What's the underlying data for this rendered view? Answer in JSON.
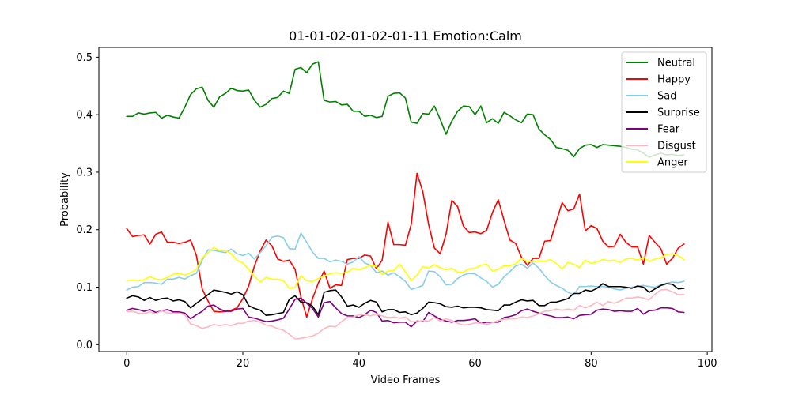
{
  "chart_data": {
    "type": "line",
    "title": "01-01-02-01-02-01-11 Emotion:Calm",
    "xlabel": "Video Frames",
    "ylabel": "Probability",
    "xlim": [
      -4.8,
      100.8
    ],
    "ylim": [
      -0.012,
      0.517
    ],
    "xticks": [
      0,
      20,
      40,
      60,
      80,
      100
    ],
    "yticks": [
      0.0,
      0.1,
      0.2,
      0.3,
      0.4,
      0.5
    ],
    "ytick_labels": [
      "0.0",
      "0.1",
      "0.2",
      "0.3",
      "0.4",
      "0.5"
    ],
    "grid": false,
    "legend_position": "top-right",
    "series": [
      {
        "name": "Neutral",
        "color": "#008000",
        "values": [
          0.397,
          0.397,
          0.403,
          0.401,
          0.403,
          0.404,
          0.394,
          0.399,
          0.396,
          0.394,
          0.413,
          0.435,
          0.445,
          0.448,
          0.425,
          0.413,
          0.431,
          0.437,
          0.446,
          0.442,
          0.441,
          0.443,
          0.425,
          0.413,
          0.418,
          0.428,
          0.43,
          0.441,
          0.437,
          0.479,
          0.482,
          0.473,
          0.488,
          0.492,
          0.425,
          0.422,
          0.423,
          0.417,
          0.418,
          0.406,
          0.406,
          0.397,
          0.399,
          0.395,
          0.397,
          0.432,
          0.437,
          0.438,
          0.429,
          0.387,
          0.385,
          0.402,
          0.401,
          0.415,
          0.392,
          0.366,
          0.389,
          0.406,
          0.415,
          0.414,
          0.4,
          0.415,
          0.386,
          0.393,
          0.385,
          0.404,
          0.398,
          0.391,
          0.386,
          0.401,
          0.4,
          0.375,
          0.365,
          0.357,
          0.343,
          0.341,
          0.338,
          0.327,
          0.341,
          0.347,
          0.348,
          0.343,
          0.348,
          0.347,
          0.346,
          0.345,
          0.343,
          0.34,
          0.339,
          0.333,
          0.326,
          0.33,
          0.333,
          0.33,
          0.331,
          0.329,
          0.33
        ]
      },
      {
        "name": "Happy",
        "color": "#ff0000",
        "values": [
          0.202,
          0.188,
          0.19,
          0.191,
          0.175,
          0.192,
          0.196,
          0.178,
          0.178,
          0.176,
          0.178,
          0.182,
          0.155,
          0.097,
          0.076,
          0.058,
          0.057,
          0.058,
          0.06,
          0.064,
          0.08,
          0.102,
          0.137,
          0.163,
          0.182,
          0.172,
          0.149,
          0.145,
          0.147,
          0.131,
          0.083,
          0.048,
          0.08,
          0.107,
          0.128,
          0.098,
          0.104,
          0.103,
          0.148,
          0.15,
          0.15,
          0.156,
          0.154,
          0.132,
          0.147,
          0.213,
          0.174,
          0.174,
          0.173,
          0.209,
          0.298,
          0.266,
          0.209,
          0.168,
          0.158,
          0.192,
          0.251,
          0.24,
          0.206,
          0.195,
          0.196,
          0.193,
          0.199,
          0.23,
          0.252,
          0.216,
          0.182,
          0.176,
          0.152,
          0.138,
          0.15,
          0.15,
          0.18,
          0.181,
          0.214,
          0.247,
          0.233,
          0.236,
          0.262,
          0.198,
          0.207,
          0.202,
          0.18,
          0.17,
          0.171,
          0.192,
          0.178,
          0.17,
          0.17,
          0.14,
          0.19,
          0.178,
          0.167,
          0.14,
          0.15,
          0.168,
          0.175
        ]
      },
      {
        "name": "Sad",
        "color": "#87ceeb",
        "values": [
          0.095,
          0.1,
          0.101,
          0.108,
          0.108,
          0.107,
          0.105,
          0.114,
          0.114,
          0.117,
          0.114,
          0.12,
          0.124,
          0.147,
          0.165,
          0.164,
          0.162,
          0.16,
          0.166,
          0.158,
          0.155,
          0.159,
          0.149,
          0.16,
          0.172,
          0.187,
          0.189,
          0.186,
          0.167,
          0.166,
          0.194,
          0.178,
          0.161,
          0.15,
          0.15,
          0.144,
          0.147,
          0.145,
          0.14,
          0.144,
          0.153,
          0.142,
          0.138,
          0.125,
          0.128,
          0.121,
          0.125,
          0.118,
          0.11,
          0.096,
          0.099,
          0.103,
          0.128,
          0.127,
          0.118,
          0.104,
          0.105,
          0.115,
          0.121,
          0.124,
          0.123,
          0.116,
          0.11,
          0.1,
          0.105,
          0.118,
          0.127,
          0.137,
          0.14,
          0.133,
          0.142,
          0.133,
          0.12,
          0.109,
          0.103,
          0.098,
          0.091,
          0.087,
          0.101,
          0.101,
          0.102,
          0.101,
          0.101,
          0.1,
          0.097,
          0.095,
          0.098,
          0.1,
          0.101,
          0.103,
          0.101,
          0.1,
          0.104,
          0.107,
          0.109,
          0.108,
          0.11
        ]
      },
      {
        "name": "Surprise",
        "color": "#000000",
        "values": [
          0.081,
          0.085,
          0.083,
          0.077,
          0.082,
          0.077,
          0.08,
          0.081,
          0.076,
          0.078,
          0.075,
          0.064,
          0.072,
          0.079,
          0.087,
          0.095,
          0.093,
          0.091,
          0.088,
          0.092,
          0.087,
          0.068,
          0.063,
          0.06,
          0.051,
          0.052,
          0.054,
          0.056,
          0.079,
          0.085,
          0.074,
          0.073,
          0.067,
          0.052,
          0.091,
          0.094,
          0.095,
          0.083,
          0.067,
          0.069,
          0.065,
          0.072,
          0.077,
          0.074,
          0.057,
          0.061,
          0.061,
          0.056,
          0.057,
          0.052,
          0.055,
          0.063,
          0.074,
          0.073,
          0.071,
          0.066,
          0.065,
          0.067,
          0.064,
          0.065,
          0.065,
          0.064,
          0.061,
          0.06,
          0.059,
          0.069,
          0.069,
          0.074,
          0.078,
          0.076,
          0.077,
          0.068,
          0.068,
          0.074,
          0.074,
          0.077,
          0.08,
          0.089,
          0.089,
          0.095,
          0.093,
          0.098,
          0.106,
          0.101,
          0.101,
          0.101,
          0.1,
          0.098,
          0.102,
          0.1,
          0.091,
          0.097,
          0.103,
          0.106,
          0.105,
          0.097,
          0.098
        ]
      },
      {
        "name": "Fear",
        "color": "#800080",
        "values": [
          0.06,
          0.063,
          0.061,
          0.058,
          0.061,
          0.056,
          0.059,
          0.061,
          0.057,
          0.057,
          0.055,
          0.045,
          0.052,
          0.058,
          0.067,
          0.069,
          0.062,
          0.058,
          0.058,
          0.062,
          0.063,
          0.048,
          0.046,
          0.043,
          0.04,
          0.041,
          0.043,
          0.046,
          0.062,
          0.079,
          0.081,
          0.072,
          0.063,
          0.048,
          0.073,
          0.075,
          0.064,
          0.054,
          0.05,
          0.05,
          0.047,
          0.052,
          0.06,
          0.056,
          0.041,
          0.042,
          0.038,
          0.039,
          0.039,
          0.031,
          0.041,
          0.04,
          0.056,
          0.05,
          0.044,
          0.041,
          0.039,
          0.042,
          0.042,
          0.043,
          0.045,
          0.037,
          0.039,
          0.039,
          0.039,
          0.047,
          0.049,
          0.052,
          0.059,
          0.062,
          0.058,
          0.055,
          0.052,
          0.05,
          0.047,
          0.047,
          0.048,
          0.045,
          0.051,
          0.052,
          0.053,
          0.06,
          0.062,
          0.061,
          0.058,
          0.059,
          0.058,
          0.058,
          0.063,
          0.053,
          0.059,
          0.06,
          0.064,
          0.064,
          0.063,
          0.057,
          0.056
        ]
      },
      {
        "name": "Disgust",
        "color": "#ffb6c1",
        "values": [
          0.058,
          0.058,
          0.055,
          0.054,
          0.057,
          0.054,
          0.059,
          0.055,
          0.055,
          0.055,
          0.052,
          0.036,
          0.033,
          0.028,
          0.031,
          0.035,
          0.033,
          0.035,
          0.033,
          0.037,
          0.037,
          0.041,
          0.042,
          0.039,
          0.034,
          0.032,
          0.028,
          0.025,
          0.018,
          0.01,
          0.011,
          0.013,
          0.015,
          0.02,
          0.028,
          0.032,
          0.031,
          0.04,
          0.047,
          0.048,
          0.052,
          0.052,
          0.05,
          0.053,
          0.05,
          0.047,
          0.048,
          0.046,
          0.048,
          0.04,
          0.04,
          0.042,
          0.041,
          0.047,
          0.041,
          0.045,
          0.042,
          0.037,
          0.034,
          0.035,
          0.038,
          0.037,
          0.035,
          0.038,
          0.042,
          0.044,
          0.045,
          0.045,
          0.048,
          0.047,
          0.05,
          0.054,
          0.058,
          0.059,
          0.062,
          0.06,
          0.062,
          0.06,
          0.068,
          0.064,
          0.068,
          0.074,
          0.068,
          0.075,
          0.072,
          0.076,
          0.081,
          0.081,
          0.083,
          0.081,
          0.078,
          0.088,
          0.095,
          0.096,
          0.092,
          0.087,
          0.087
        ]
      },
      {
        "name": "Anger",
        "color": "#ffff00",
        "values": [
          0.111,
          0.112,
          0.111,
          0.113,
          0.118,
          0.114,
          0.113,
          0.117,
          0.122,
          0.124,
          0.121,
          0.125,
          0.131,
          0.151,
          0.16,
          0.169,
          0.164,
          0.163,
          0.158,
          0.147,
          0.142,
          0.131,
          0.119,
          0.109,
          0.117,
          0.114,
          0.114,
          0.111,
          0.098,
          0.1,
          0.12,
          0.111,
          0.11,
          0.115,
          0.119,
          0.124,
          0.125,
          0.124,
          0.126,
          0.133,
          0.13,
          0.134,
          0.138,
          0.136,
          0.122,
          0.128,
          0.129,
          0.14,
          0.127,
          0.111,
          0.121,
          0.136,
          0.133,
          0.139,
          0.134,
          0.13,
          0.133,
          0.126,
          0.126,
          0.132,
          0.133,
          0.138,
          0.14,
          0.128,
          0.131,
          0.137,
          0.137,
          0.141,
          0.15,
          0.145,
          0.144,
          0.146,
          0.145,
          0.148,
          0.141,
          0.132,
          0.143,
          0.14,
          0.134,
          0.147,
          0.141,
          0.144,
          0.148,
          0.146,
          0.147,
          0.143,
          0.149,
          0.15,
          0.147,
          0.152,
          0.145,
          0.149,
          0.151,
          0.157,
          0.158,
          0.155,
          0.148
        ]
      }
    ]
  }
}
